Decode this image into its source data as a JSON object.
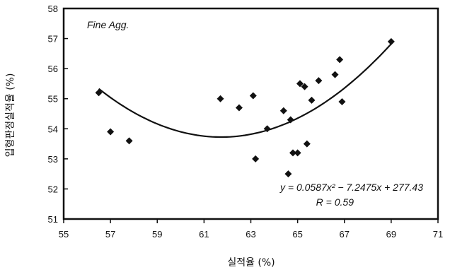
{
  "chart_data": {
    "type": "scatter",
    "title": "",
    "xlabel": "실적율 (%)",
    "ylabel": "입형판정실적율 (%)",
    "xlim": [
      55,
      71
    ],
    "ylim": [
      51,
      58
    ],
    "xticks": [
      "55",
      "57",
      "59",
      "61",
      "63",
      "65",
      "67",
      "69",
      "71"
    ],
    "yticks": [
      "51",
      "52",
      "53",
      "54",
      "55",
      "56",
      "57",
      "58"
    ],
    "grid": false,
    "legend": "none",
    "annotation_label": "Fine Agg.",
    "equation": "y = 0.0587x² − 7.2475x + 277.43",
    "r_value": "R = 0.59",
    "marker": "diamond",
    "colors": {
      "points": "#111111",
      "trend": "#111111"
    },
    "series": [
      {
        "x": [
          56.5,
          57.0,
          57.8,
          61.7,
          62.5,
          63.1,
          63.2,
          63.7,
          64.4,
          64.6,
          64.7,
          64.8,
          65.0,
          65.1,
          65.3,
          65.4,
          65.6,
          65.9,
          66.6,
          66.8,
          66.9,
          69.0
        ],
        "y": [
          55.2,
          53.9,
          53.6,
          55.0,
          54.7,
          55.1,
          53.0,
          54.0,
          54.6,
          52.5,
          54.3,
          53.2,
          53.2,
          55.5,
          55.4,
          53.5,
          54.95,
          55.6,
          55.8,
          56.3,
          54.9,
          56.9
        ]
      }
    ],
    "trendline": {
      "type": "polynomial",
      "a": 0.0587,
      "b": -7.2475,
      "c": 277.43,
      "x_range": [
        56.5,
        69.0
      ]
    }
  }
}
